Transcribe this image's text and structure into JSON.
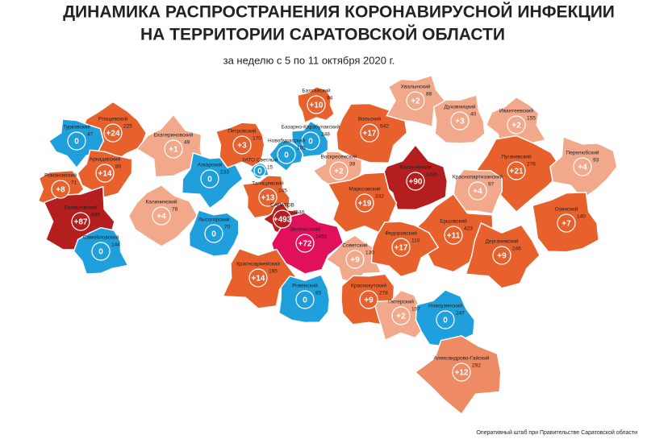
{
  "header": {
    "title_line1": "ДИНАМИКА РАСПРОСТРАНЕНИЯ КОРОНАВИРУСНОЙ ИНФЕКЦИИ",
    "title_line2": "НА ТЕРРИТОРИИ САРАТОВСКОЙ ОБЛАСТИ",
    "subtitle": "за неделю с 5 по 11 октября 2020 г."
  },
  "districts": [
    {
      "name": "Ртищевский",
      "increase": "+24",
      "total": 225,
      "color": "#e8612c"
    },
    {
      "name": "Турковский",
      "increase": "0",
      "total": 47,
      "color": "#1fa0dc"
    },
    {
      "name": "Аркадакский",
      "increase": "+14",
      "total": 80,
      "color": "#e8612c"
    },
    {
      "name": "Романовский",
      "increase": "+8",
      "total": 71,
      "color": "#e8612c"
    },
    {
      "name": "Балашовский",
      "increase": "+87",
      "total": 686,
      "color": "#b41e1e"
    },
    {
      "name": "Самойловский",
      "increase": "0",
      "total": 144,
      "color": "#1fa0dc"
    },
    {
      "name": "Екатериновский",
      "increase": "+1",
      "total": 49,
      "color": "#f2a88a"
    },
    {
      "name": "Калининский",
      "increase": "+4",
      "total": 78,
      "color": "#f2a88a"
    },
    {
      "name": "Аткарский",
      "increase": "0",
      "total": 233,
      "color": "#1fa0dc"
    },
    {
      "name": "Лысогорский",
      "increase": "0",
      "total": 70,
      "color": "#1fa0dc"
    },
    {
      "name": "Петровский",
      "increase": "+3",
      "total": 170,
      "color": "#e8612c"
    },
    {
      "name": "Татищевский",
      "increase": "+13",
      "total": 245,
      "color": "#e8612c"
    },
    {
      "name": "ЗАТО Светлый",
      "increase": "0",
      "total": 15,
      "color": "#1fa0dc"
    },
    {
      "name": "САРАТОВ",
      "increase": "+493",
      "total": 7546,
      "color": "#b41e1e"
    },
    {
      "name": "Энгельсский",
      "increase": "+72",
      "total": 1451,
      "color": "#e0105a"
    },
    {
      "name": "Красноармейский",
      "increase": "+14",
      "total": 195,
      "color": "#e8612c"
    },
    {
      "name": "Ровенский",
      "increase": "0",
      "total": 85,
      "color": "#1fa0dc"
    },
    {
      "name": "Балтайский",
      "increase": "+10",
      "total": 94,
      "color": "#e8612c"
    },
    {
      "name": "Базарно-Карабулакский",
      "increase": "0",
      "total": 248,
      "color": "#1fa0dc"
    },
    {
      "name": "Новобурасский",
      "increase": "0",
      "total": 105,
      "color": "#1fa0dc"
    },
    {
      "name": "Воскресенский",
      "increase": "+2",
      "total": 39,
      "color": "#f2a88a"
    },
    {
      "name": "Вольский",
      "increase": "+17",
      "total": 542,
      "color": "#e8612c"
    },
    {
      "name": "Хвалынский",
      "increase": "+2",
      "total": 88,
      "color": "#f2a88a"
    },
    {
      "name": "Духовницкий",
      "increase": "+3",
      "total": 40,
      "color": "#f2a88a"
    },
    {
      "name": "Ивантеевский",
      "increase": "+2",
      "total": 155,
      "color": "#f2a88a"
    },
    {
      "name": "Балаковский",
      "increase": "+90",
      "total": 1435,
      "color": "#b41e1e"
    },
    {
      "name": "Пугачевский",
      "increase": "+21",
      "total": 276,
      "color": "#e8612c"
    },
    {
      "name": "Перелюбский",
      "increase": "+4",
      "total": 93,
      "color": "#f2a88a"
    },
    {
      "name": "Краснопартизанский",
      "increase": "+4",
      "total": 97,
      "color": "#f2a88a"
    },
    {
      "name": "Марксовский",
      "increase": "+19",
      "total": 332,
      "color": "#e8612c"
    },
    {
      "name": "Озинский",
      "increase": "+7",
      "total": 140,
      "color": "#e8612c"
    },
    {
      "name": "Советский",
      "increase": "+9",
      "total": 130,
      "color": "#f2a88a"
    },
    {
      "name": "Ершовский",
      "increase": "+11",
      "total": 423,
      "color": "#e8612c"
    },
    {
      "name": "Федоровский",
      "increase": "+17",
      "total": 110,
      "color": "#e8612c"
    },
    {
      "name": "Дергачевский",
      "increase": "+9",
      "total": 246,
      "color": "#e8612c"
    },
    {
      "name": "Краснокутский",
      "increase": "+9",
      "total": 278,
      "color": "#e8612c"
    },
    {
      "name": "Питерский",
      "increase": "+2",
      "total": 107,
      "color": "#f2a88a"
    },
    {
      "name": "Новоузенский",
      "increase": "0",
      "total": 247,
      "color": "#1fa0dc"
    },
    {
      "name": "Александрово-Гайский",
      "increase": "+12",
      "total": 292,
      "color": "#ee8a64"
    }
  ],
  "footer": "Оперативный штаб при Правительстве Саратовской области"
}
